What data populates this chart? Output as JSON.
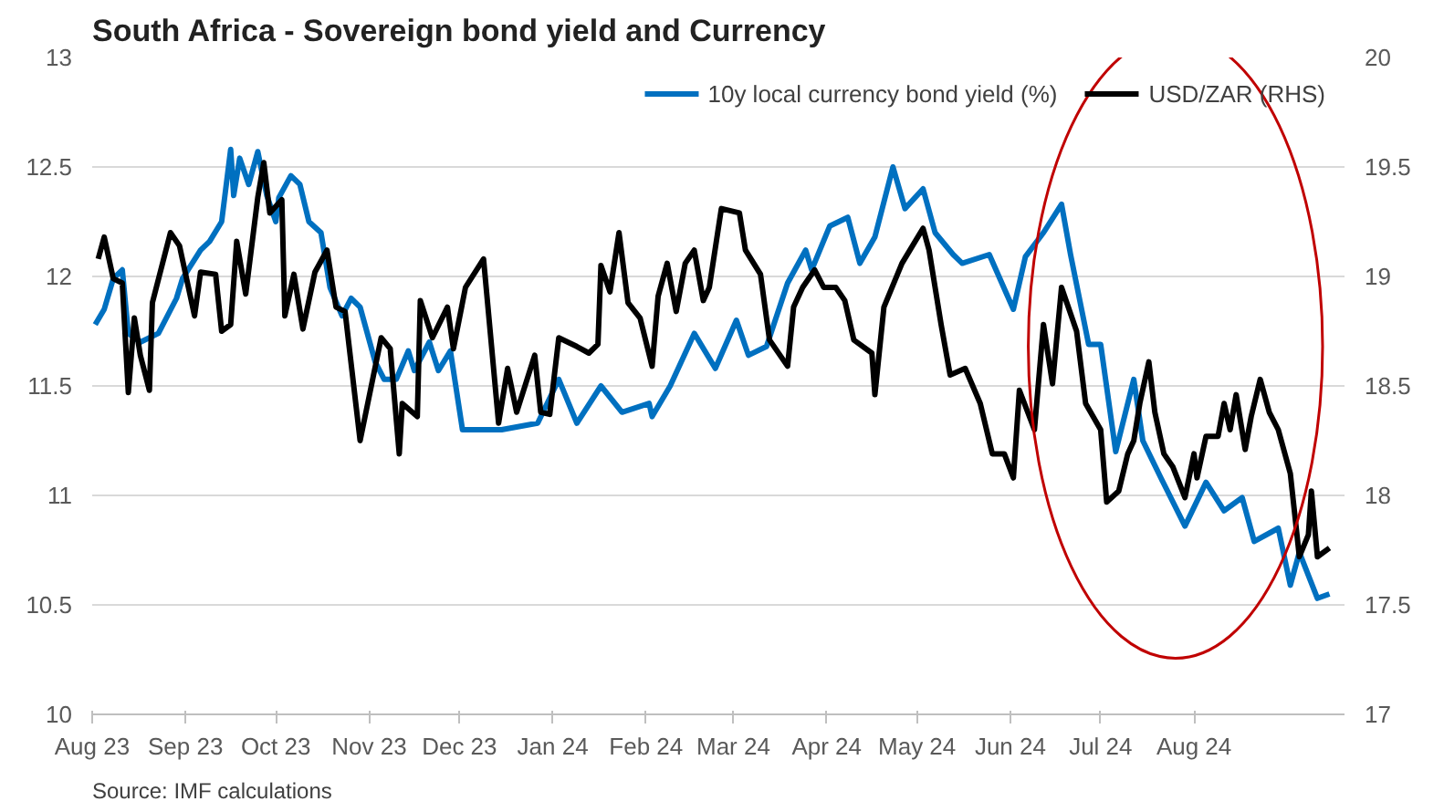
{
  "chart_data": {
    "type": "line",
    "title": "South Africa - Sovereign bond yield and Currency",
    "annotations": [
      "Source: IMF calculations"
    ],
    "xlim": [
      "2023-08-01",
      "2024-09-20"
    ],
    "xticks": [
      {
        "value": "2023-08-01",
        "label": "Aug 23"
      },
      {
        "value": "2023-09-01",
        "label": "Sep 23"
      },
      {
        "value": "2023-10-01",
        "label": "Oct 23"
      },
      {
        "value": "2023-11-01",
        "label": "Nov 23"
      },
      {
        "value": "2023-12-01",
        "label": "Dec 23"
      },
      {
        "value": "2024-01-01",
        "label": "Jan 24"
      },
      {
        "value": "2024-02-01",
        "label": "Feb 24"
      },
      {
        "value": "2024-03-01",
        "label": "Mar 24"
      },
      {
        "value": "2024-04-01",
        "label": "Apr 24"
      },
      {
        "value": "2024-05-01",
        "label": "May 24"
      },
      {
        "value": "2024-06-01",
        "label": "Jun 24"
      },
      {
        "value": "2024-07-01",
        "label": "Jul 24"
      },
      {
        "value": "2024-08-01",
        "label": "Aug 24"
      }
    ],
    "ylim": [
      10,
      13
    ],
    "yticks": [
      10,
      10.5,
      11,
      11.5,
      12,
      12.5,
      13
    ],
    "y2lim": [
      17,
      20
    ],
    "y2ticks": [
      17,
      17.5,
      18,
      18.5,
      19,
      19.5,
      20
    ],
    "grid": "y",
    "legend": "top right",
    "marker": "none",
    "line_style": "solid",
    "series": [
      {
        "name": "10y local currency bond yield (%)",
        "color": "#0070c0",
        "x": [
          "2023-08-02",
          "2023-08-05",
          "2023-08-08",
          "2023-08-11",
          "2023-08-13",
          "2023-08-17",
          "2023-08-23",
          "2023-08-29",
          "2023-08-31",
          "2023-09-06",
          "2023-09-09",
          "2023-09-13",
          "2023-09-16",
          "2023-09-17",
          "2023-09-19",
          "2023-09-22",
          "2023-09-25",
          "2023-09-28",
          "2023-10-01",
          "2023-10-02",
          "2023-10-06",
          "2023-10-09",
          "2023-10-12",
          "2023-10-16",
          "2023-10-19",
          "2023-10-23",
          "2023-10-26",
          "2023-10-29",
          "2023-11-03",
          "2023-11-06",
          "2023-11-10",
          "2023-11-14",
          "2023-11-16",
          "2023-11-21",
          "2023-11-24",
          "2023-11-28",
          "2023-12-02",
          "2023-12-15",
          "2023-12-27",
          "2024-01-03",
          "2024-01-09",
          "2024-01-17",
          "2024-01-24",
          "2024-02-02",
          "2024-02-03",
          "2024-02-09",
          "2024-02-17",
          "2024-02-24",
          "2024-03-02",
          "2024-03-06",
          "2024-03-12",
          "2024-03-19",
          "2024-03-25",
          "2024-03-27",
          "2024-04-02",
          "2024-04-08",
          "2024-04-12",
          "2024-04-17",
          "2024-04-23",
          "2024-04-27",
          "2024-05-03",
          "2024-05-07",
          "2024-05-13",
          "2024-05-16",
          "2024-05-25",
          "2024-06-02",
          "2024-06-06",
          "2024-06-12",
          "2024-06-18",
          "2024-06-21",
          "2024-06-27",
          "2024-07-01",
          "2024-07-06",
          "2024-07-12",
          "2024-07-15",
          "2024-07-21",
          "2024-07-29",
          "2024-08-05",
          "2024-08-11",
          "2024-08-17",
          "2024-08-21",
          "2024-08-29",
          "2024-09-02",
          "2024-09-05",
          "2024-09-11",
          "2024-09-15"
        ],
        "values": [
          11.78,
          11.85,
          11.99,
          12.03,
          11.74,
          11.7,
          11.74,
          11.9,
          11.99,
          12.12,
          12.16,
          12.25,
          12.58,
          12.37,
          12.54,
          12.42,
          12.57,
          12.37,
          12.25,
          12.36,
          12.46,
          12.42,
          12.25,
          12.2,
          11.95,
          11.82,
          11.9,
          11.86,
          11.61,
          11.53,
          11.53,
          11.66,
          11.57,
          11.7,
          11.57,
          11.66,
          11.3,
          11.3,
          11.33,
          11.53,
          11.33,
          11.5,
          11.38,
          11.42,
          11.36,
          11.5,
          11.74,
          11.58,
          11.8,
          11.64,
          11.68,
          11.97,
          12.12,
          12.03,
          12.23,
          12.27,
          12.06,
          12.18,
          12.5,
          12.31,
          12.4,
          12.2,
          12.1,
          12.06,
          12.1,
          11.85,
          12.09,
          12.2,
          12.33,
          12.1,
          11.69,
          11.69,
          11.2,
          11.53,
          11.25,
          11.08,
          10.86,
          11.06,
          10.93,
          10.99,
          10.79,
          10.85,
          10.59,
          10.74,
          10.53,
          10.55
        ]
      },
      {
        "name": "USD/ZAR (RHS)",
        "color": "#000000",
        "axis": "y2",
        "x": [
          "2023-08-03",
          "2023-08-05",
          "2023-08-08",
          "2023-08-11",
          "2023-08-13",
          "2023-08-15",
          "2023-08-17",
          "2023-08-20",
          "2023-08-21",
          "2023-08-27",
          "2023-08-30",
          "2023-09-04",
          "2023-09-06",
          "2023-09-11",
          "2023-09-13",
          "2023-09-16",
          "2023-09-18",
          "2023-09-21",
          "2023-09-25",
          "2023-09-27",
          "2023-09-29",
          "2023-10-03",
          "2023-10-04",
          "2023-10-07",
          "2023-10-10",
          "2023-10-14",
          "2023-10-18",
          "2023-10-21",
          "2023-10-24",
          "2023-10-29",
          "2023-11-05",
          "2023-11-08",
          "2023-11-11",
          "2023-11-12",
          "2023-11-17",
          "2023-11-18",
          "2023-11-22",
          "2023-11-27",
          "2023-11-29",
          "2023-12-03",
          "2023-12-09",
          "2023-12-14",
          "2023-12-17",
          "2023-12-20",
          "2023-12-26",
          "2023-12-28",
          "2023-12-31",
          "2024-01-03",
          "2024-01-09",
          "2024-01-13",
          "2024-01-16",
          "2024-01-17",
          "2024-01-20",
          "2024-01-23",
          "2024-01-26",
          "2024-01-30",
          "2024-02-03",
          "2024-02-05",
          "2024-02-08",
          "2024-02-11",
          "2024-02-14",
          "2024-02-17",
          "2024-02-20",
          "2024-02-22",
          "2024-02-26",
          "2024-03-03",
          "2024-03-05",
          "2024-03-10",
          "2024-03-13",
          "2024-03-19",
          "2024-03-21",
          "2024-03-24",
          "2024-03-28",
          "2024-03-31",
          "2024-04-04",
          "2024-04-07",
          "2024-04-10",
          "2024-04-16",
          "2024-04-17",
          "2024-04-20",
          "2024-04-26",
          "2024-05-03",
          "2024-05-05",
          "2024-05-09",
          "2024-05-12",
          "2024-05-17",
          "2024-05-22",
          "2024-05-26",
          "2024-05-30",
          "2024-06-02",
          "2024-06-04",
          "2024-06-09",
          "2024-06-12",
          "2024-06-15",
          "2024-06-18",
          "2024-06-23",
          "2024-06-26",
          "2024-07-01",
          "2024-07-03",
          "2024-07-07",
          "2024-07-10",
          "2024-07-12",
          "2024-07-14",
          "2024-07-17",
          "2024-07-19",
          "2024-07-22",
          "2024-07-25",
          "2024-07-29",
          "2024-08-01",
          "2024-08-02",
          "2024-08-05",
          "2024-08-09",
          "2024-08-11",
          "2024-08-13",
          "2024-08-15",
          "2024-08-18",
          "2024-08-20",
          "2024-08-23",
          "2024-08-26",
          "2024-08-29",
          "2024-09-02",
          "2024-09-05",
          "2024-09-08",
          "2024-09-09",
          "2024-09-11",
          "2024-09-15"
        ],
        "values": [
          19.08,
          19.18,
          18.99,
          18.97,
          18.47,
          18.81,
          18.64,
          18.48,
          18.88,
          19.2,
          19.14,
          18.82,
          19.02,
          19.01,
          18.75,
          18.78,
          19.16,
          18.92,
          19.36,
          19.52,
          19.29,
          19.35,
          18.82,
          19.01,
          18.76,
          19.02,
          19.12,
          18.86,
          18.84,
          18.25,
          18.72,
          18.67,
          18.19,
          18.42,
          18.36,
          18.89,
          18.72,
          18.86,
          18.67,
          18.95,
          19.08,
          18.33,
          18.58,
          18.38,
          18.64,
          18.38,
          18.37,
          18.72,
          18.68,
          18.65,
          18.69,
          19.05,
          18.93,
          19.2,
          18.88,
          18.81,
          18.59,
          18.91,
          19.06,
          18.84,
          19.06,
          19.12,
          18.89,
          18.95,
          19.31,
          19.29,
          19.12,
          19.01,
          18.71,
          18.59,
          18.86,
          18.95,
          19.03,
          18.95,
          18.95,
          18.89,
          18.71,
          18.65,
          18.46,
          18.86,
          19.06,
          19.22,
          19.12,
          18.78,
          18.55,
          18.58,
          18.42,
          18.19,
          18.19,
          18.08,
          18.48,
          18.3,
          18.78,
          18.51,
          18.95,
          18.75,
          18.42,
          18.3,
          17.97,
          18.02,
          18.19,
          18.25,
          18.42,
          18.61,
          18.38,
          18.19,
          18.13,
          17.99,
          18.19,
          18.08,
          18.27,
          18.27,
          18.42,
          18.3,
          18.46,
          18.21,
          18.36,
          18.53,
          18.38,
          18.3,
          18.1,
          17.72,
          17.82,
          18.02,
          17.72,
          17.76
        ]
      }
    ]
  }
}
